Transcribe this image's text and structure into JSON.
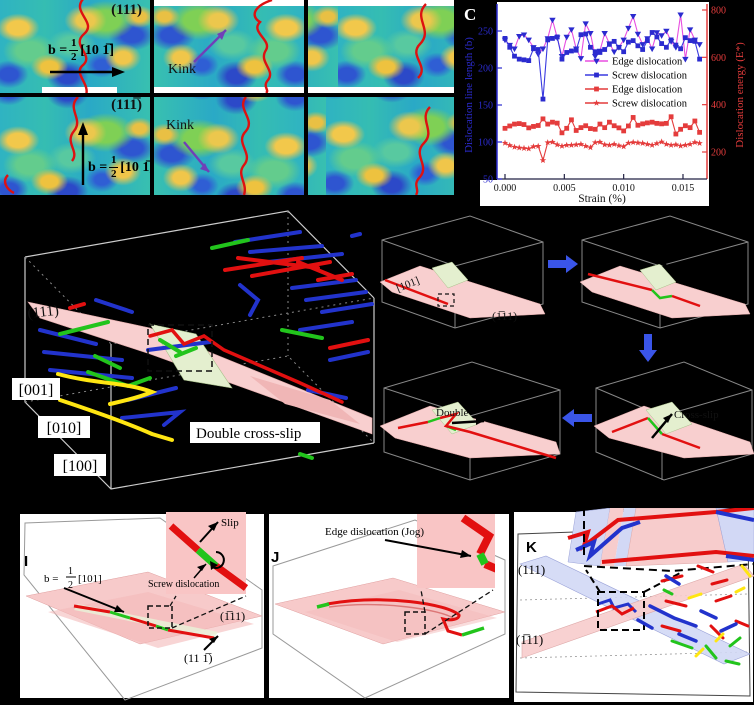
{
  "surfaces": {
    "plane_r1": "(111)",
    "plane_r2": "(111̅)",
    "kink": "Kink",
    "b_prefix": "b =",
    "b_num": "1",
    "b_den": "2",
    "b_dir": "[10 1̅]"
  },
  "chart": {
    "panel_label": "C",
    "xlabel": "Strain (%)",
    "ylabel_left": "Dislocation line length (b)",
    "ylabel_right": "Dislocation energy (E*)"
  },
  "chart_data": {
    "type": "line",
    "title": "",
    "xlabel": "Strain (%)",
    "ylabel_left": "Dislocation line length (b)",
    "ylabel_right": "Dislocation energy (E*)",
    "xlim": [
      0,
      0.017
    ],
    "ylim_left": [
      50,
      275
    ],
    "ylim_right": [
      150,
      820
    ],
    "xticks": [
      "0.000",
      "0.005",
      "0.010",
      "0.015"
    ],
    "xtick_values": [
      0,
      0.005,
      0.01,
      0.015
    ],
    "yticks_left": [
      50,
      100,
      150,
      200,
      250
    ],
    "yticks_right": [
      200,
      400,
      600,
      800
    ],
    "grid": false,
    "legend_position": "center",
    "x": [
      0.0,
      0.0004,
      0.0008,
      0.0012,
      0.0016,
      0.002,
      0.0024,
      0.0028,
      0.0032,
      0.0036,
      0.004,
      0.0044,
      0.0048,
      0.0052,
      0.0056,
      0.006,
      0.0064,
      0.0068,
      0.0072,
      0.0076,
      0.008,
      0.0084,
      0.0088,
      0.0092,
      0.0096,
      0.01,
      0.0104,
      0.0108,
      0.0112,
      0.0116,
      0.012,
      0.0124,
      0.0128,
      0.0132,
      0.0136,
      0.014,
      0.0144,
      0.0148,
      0.0152,
      0.0156,
      0.016,
      0.0164
    ],
    "series": [
      {
        "name": "Edge dislocation",
        "axis": "left",
        "line_color": "#e84fe0",
        "marker": "triangle",
        "marker_color": "#2b2bcf",
        "values": [
          238,
          231,
          226,
          243,
          245,
          238,
          228,
          219,
          226,
          240,
          265,
          241,
          216,
          242,
          252,
          226,
          213,
          260,
          247,
          216,
          223,
          247,
          233,
          222,
          228,
          238,
          254,
          270,
          246,
          232,
          240,
          226,
          248,
          244,
          250,
          236,
          228,
          272,
          212,
          252,
          238,
          232
        ]
      },
      {
        "name": "Screw dislocation",
        "axis": "left",
        "line_color": "#3a3ae0",
        "marker": "square",
        "marker_color": "#2b2bcf",
        "values": [
          240,
          228,
          216,
          212,
          211,
          210,
          226,
          225,
          158,
          238,
          240,
          242,
          212,
          221,
          223,
          224,
          245,
          246,
          228,
          222,
          221,
          225,
          232,
          236,
          228,
          222,
          235,
          237,
          230,
          225,
          237,
          248,
          242,
          233,
          228,
          238,
          231,
          226,
          241,
          237,
          236,
          212
        ]
      },
      {
        "name": "Edge dislocation",
        "axis": "right",
        "line_color": "#e43c3c",
        "marker": "square",
        "marker_color": "#e43c3c",
        "values": [
          300,
          310,
          318,
          320,
          316,
          302,
          308,
          312,
          340,
          318,
          326,
          322,
          281,
          300,
          336,
          291,
          303,
          311,
          299,
          296,
          318,
          303,
          326,
          311,
          302,
          289,
          310,
          346,
          313,
          319,
          323,
          326,
          321,
          319,
          321,
          349,
          276,
          296,
          311,
          303,
          331,
          283
        ]
      },
      {
        "name": "Screw dislocation",
        "axis": "right",
        "line_color": "#e43c3c",
        "marker": "star",
        "marker_color": "#e43c3c",
        "values": [
          238,
          228,
          221,
          218,
          216,
          214,
          223,
          225,
          165,
          240,
          242,
          231,
          225,
          229,
          229,
          231,
          233,
          225,
          219,
          240,
          242,
          231,
          229,
          233,
          227,
          223,
          238,
          241,
          239,
          237,
          233,
          229,
          236,
          243,
          233,
          229,
          231,
          226,
          229,
          233,
          241,
          237
        ]
      }
    ]
  },
  "main3d": {
    "plane": "(111)",
    "axis1": "[001]",
    "axis2": "[010]",
    "axis3": "[100]",
    "caption": "Double cross-slip"
  },
  "sequence": {
    "b1_dir": "[101]",
    "b1_plane": "(1̅11)",
    "b3_label": "Double",
    "b4_label": "Cross-slip"
  },
  "panel_i": {
    "id": "I",
    "b_prefix": "b =",
    "b_num": "1",
    "b_den": "2",
    "b_dir": "[101]",
    "slip": "Slip",
    "screw": "Screw dislocation",
    "plane1": "(1̅11)",
    "plane2": "(11 1̅)"
  },
  "panel_j": {
    "id": "J",
    "jog": "Edge dislocation (Jog)"
  },
  "panel_k": {
    "id": "K",
    "plane_top": "(111)",
    "plane_bottom": "(1̅11)"
  },
  "colors": {
    "edge_line": "#e84fe0",
    "screw_line": "#3a3ae0",
    "energy_red": "#e43c3c",
    "dislocation_red": "#e21010",
    "dislocation_green": "#22c41c",
    "dislocation_blue": "#2233cc",
    "dislocation_yellow": "#ffe612",
    "slip_plane_pink": "#f8cfcf",
    "cross_plane_green": "#e4efcf",
    "arrow_blue": "#3a55e8",
    "kink_arrow_purple": "#7040b8"
  }
}
